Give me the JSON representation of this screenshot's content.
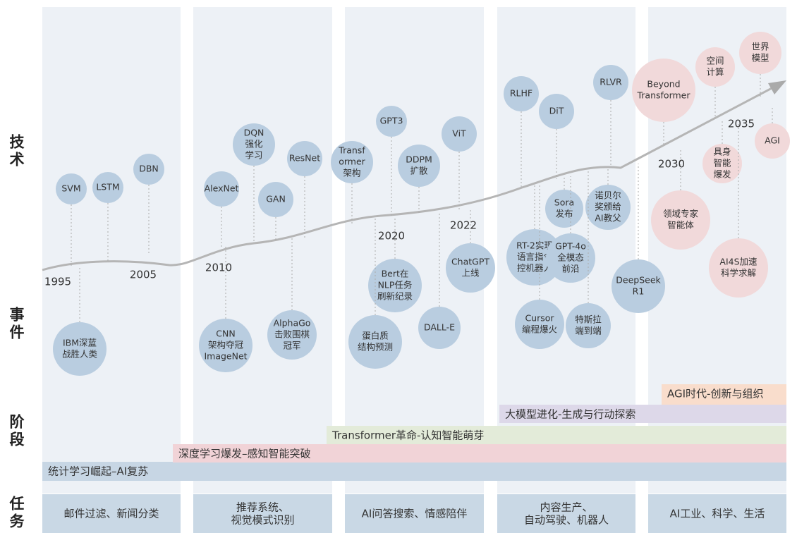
{
  "side_labels": [
    "技术",
    "事件",
    "阶段",
    "任务"
  ],
  "nodes": [
    {
      "lines": [
        "SVM"
      ]
    },
    {
      "lines": [
        "LSTM"
      ]
    },
    {
      "lines": [
        "DBN"
      ]
    },
    {
      "lines": [
        "AlexNet"
      ]
    },
    {
      "lines": [
        "DQN",
        "强化",
        "学习"
      ]
    },
    {
      "lines": [
        "GAN"
      ]
    },
    {
      "lines": [
        "ResNet"
      ]
    },
    {
      "lines": [
        "Transf",
        "ormer",
        "架构"
      ]
    },
    {
      "lines": [
        "GPT3"
      ]
    },
    {
      "lines": [
        "DDPM",
        "扩散"
      ]
    },
    {
      "lines": [
        "ViT"
      ]
    },
    {
      "lines": [
        "RLHF"
      ]
    },
    {
      "lines": [
        "DiT"
      ]
    },
    {
      "lines": [
        "RLVR"
      ]
    },
    {
      "lines": [
        "Beyond",
        "Transformer"
      ]
    },
    {
      "lines": [
        "空间",
        "计算"
      ]
    },
    {
      "lines": [
        "世界",
        "模型"
      ]
    },
    {
      "lines": [
        "具身",
        "智能",
        "爆发"
      ]
    },
    {
      "lines": [
        "AGI"
      ]
    },
    {
      "lines": [
        "IBM深蓝",
        "战胜人类"
      ]
    },
    {
      "lines": [
        "CNN",
        "架构夺冠",
        "ImageNet"
      ]
    },
    {
      "lines": [
        "AlphaGo",
        "击败围棋",
        "冠军"
      ]
    },
    {
      "lines": [
        "Bert在",
        "NLP任务",
        "刷新纪录"
      ]
    },
    {
      "lines": [
        "蛋白质",
        "结构预测"
      ]
    },
    {
      "lines": [
        "DALL-E"
      ]
    },
    {
      "lines": [
        "ChatGPT",
        "上线"
      ]
    },
    {
      "lines": [
        "RT-2实现",
        "语言指令",
        "控机器人"
      ]
    },
    {
      "lines": [
        "Cursor",
        "编程爆火"
      ]
    },
    {
      "lines": [
        "Sora",
        "发布"
      ]
    },
    {
      "lines": [
        "GPT-4o",
        "全模态",
        "前沿"
      ]
    },
    {
      "lines": [
        "诺贝尔",
        "奖颁给",
        "AI教父"
      ]
    },
    {
      "lines": [
        "特斯拉",
        "端到端"
      ]
    },
    {
      "lines": [
        "DeepSeek",
        "R1"
      ]
    },
    {
      "lines": [
        "领域专家",
        "智能体"
      ]
    },
    {
      "lines": [
        "AI4S加速",
        "科学求解"
      ]
    }
  ],
  "years": [
    "1995",
    "2005",
    "2010",
    "2020",
    "2022",
    "2030",
    "2035"
  ],
  "stages": [
    "统计学习崛起–AI复苏",
    "深度学习爆发–感知智能突破",
    "Transformer革命-认知智能萌芽",
    "大模型进化-生成与行动探索",
    "AGI时代-创新与组织"
  ],
  "tasks": [
    {
      "lines": [
        "邮件过滤、新闻分类"
      ]
    },
    {
      "lines": [
        "推荐系统、",
        "视觉模式识别"
      ]
    },
    {
      "lines": [
        "AI问答搜索、情感陪伴"
      ]
    },
    {
      "lines": [
        "内容生产、",
        "自动驾驶、机器人"
      ]
    },
    {
      "lines": [
        "AI工业、科学、生活"
      ]
    }
  ]
}
